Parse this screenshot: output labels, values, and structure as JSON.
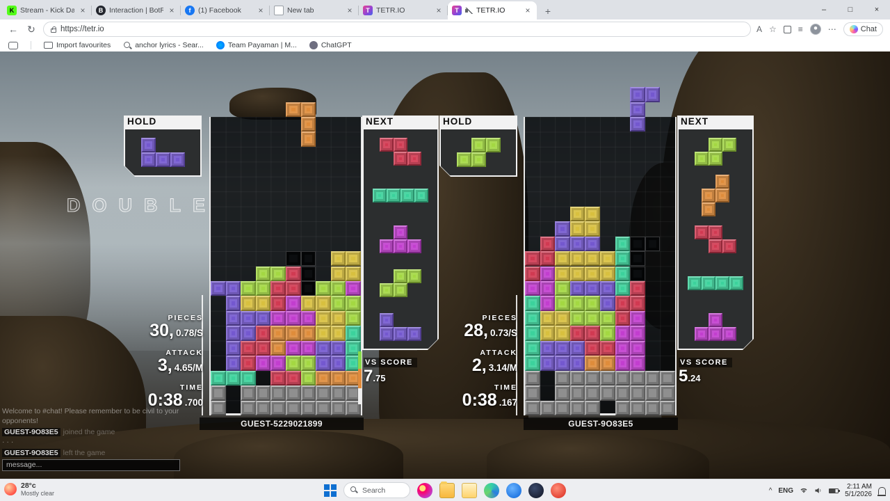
{
  "browser": {
    "icons": {
      "close": "×",
      "new_tab": "+",
      "minimize": "–",
      "maximize": "□",
      "back": "←",
      "refresh": "↻",
      "more": "⋯",
      "star": "☆",
      "favorites_list": "≡",
      "read_aloud": "A",
      "chevron_up": "^"
    },
    "tabs": [
      {
        "title": "Stream - Kick Dashboard",
        "favicon": "kick",
        "glyph": "K"
      },
      {
        "title": "Interaction | BotRix — Cloud Stre...",
        "favicon": "botrix",
        "glyph": "B"
      },
      {
        "title": "(1) Facebook",
        "favicon": "facebook",
        "glyph": "f"
      },
      {
        "title": "New tab",
        "favicon": "newtab",
        "glyph": ""
      },
      {
        "title": "TETR.IO",
        "favicon": "tetrio",
        "glyph": "T"
      },
      {
        "title": "TETR.IO",
        "favicon": "tetrio",
        "glyph": "T",
        "active": true,
        "muted": true
      }
    ],
    "url": "https://tetr.io",
    "chat_button_label": "Chat",
    "bookmarks": [
      {
        "label": "Import favourites",
        "icon": "import"
      },
      {
        "label": "anchor lyrics - Sear...",
        "icon": "search"
      },
      {
        "label": "Team Payaman | M...",
        "icon": "messenger"
      },
      {
        "label": "ChatGPT",
        "icon": "chatgpt"
      }
    ]
  },
  "game": {
    "labels": {
      "hold": "HOLD",
      "next": "NEXT",
      "pieces": "PIECES",
      "attack": "ATTACK",
      "time": "TIME",
      "vs": "VS SCORE"
    },
    "announcement": "DOUBLE",
    "block_colors": {
      "Y": "#d8c03f",
      "O": "#df8c3b",
      "R": "#d13a52",
      "L": "#a3d842",
      "V": "#7458cf",
      "M": "#c23ecf",
      "T": "#3cd29c",
      "G": "#8f8f8f"
    },
    "players": [
      {
        "name": "GUEST-5229021899",
        "stats": {
          "pieces": "30,",
          "pieces_rate": "0.78/S",
          "attack": "3,",
          "attack_rate": "4.65/M",
          "time": "0:38",
          "time_ms": ".700"
        },
        "vs_score_int": "7",
        "vs_score_dec": ".75",
        "hold": {
          "piece": "J",
          "color": "V",
          "cells": [
            [
              0,
              0
            ],
            [
              0,
              1
            ],
            [
              1,
              1
            ],
            [
              2,
              1
            ]
          ]
        },
        "next": [
          {
            "piece": "Z",
            "color": "R",
            "cells": [
              [
                0,
                0
              ],
              [
                1,
                0
              ],
              [
                1,
                1
              ],
              [
                2,
                1
              ]
            ]
          },
          {
            "piece": "I",
            "color": "T",
            "cells": [
              [
                0,
                0
              ],
              [
                1,
                0
              ],
              [
                2,
                0
              ],
              [
                3,
                0
              ]
            ]
          },
          {
            "piece": "T",
            "color": "M",
            "cells": [
              [
                1,
                0
              ],
              [
                0,
                1
              ],
              [
                1,
                1
              ],
              [
                2,
                1
              ]
            ]
          },
          {
            "piece": "S",
            "color": "L",
            "cells": [
              [
                1,
                0
              ],
              [
                2,
                0
              ],
              [
                0,
                1
              ],
              [
                1,
                1
              ]
            ]
          },
          {
            "piece": "J",
            "color": "V",
            "cells": [
              [
                0,
                0
              ],
              [
                0,
                1
              ],
              [
                1,
                1
              ],
              [
                2,
                1
              ]
            ]
          }
        ],
        "falling": {
          "piece": "L",
          "color": "O",
          "cells": [
            [
              5,
              -1
            ],
            [
              6,
              -1
            ],
            [
              6,
              0
            ],
            [
              6,
              1
            ]
          ]
        },
        "board_rows": [
          "..........",
          "..........",
          "..........",
          "..........",
          "..........",
          "..........",
          "..........",
          "..........",
          "..........",
          ".....xx.YY",
          "...LLRx.YY",
          "VVLLRRxLLM",
          ".VYYRMYYLL",
          ".VVVMMMYYL",
          ".VVROOOYYT",
          ".VRROMMVVT",
          ".VRMMLLVVT",
          "TTT.RRLOOO",
          "G.GGGGGGGG",
          "G.GGGGGGGG"
        ],
        "meter_segments": [
          "#86d94b",
          "#e08b3c",
          "#efefef"
        ]
      },
      {
        "name": "GUEST-9O83E5",
        "stats": {
          "pieces": "28,",
          "pieces_rate": "0.73/S",
          "attack": "2,",
          "attack_rate": "3.14/M",
          "time": "0:38",
          "time_ms": ".167"
        },
        "vs_score_int": "5",
        "vs_score_dec": ".24",
        "hold": {
          "piece": "S",
          "color": "L",
          "cells": [
            [
              1,
              0
            ],
            [
              2,
              0
            ],
            [
              0,
              1
            ],
            [
              1,
              1
            ]
          ]
        },
        "next": [
          {
            "piece": "S",
            "color": "L",
            "cells": [
              [
                1,
                0
              ],
              [
                2,
                0
              ],
              [
                0,
                1
              ],
              [
                1,
                1
              ]
            ]
          },
          {
            "piece": "L",
            "color": "O",
            "cells": [
              [
                1,
                0
              ],
              [
                0,
                1
              ],
              [
                1,
                1
              ],
              [
                0,
                2
              ]
            ]
          },
          {
            "piece": "Z",
            "color": "R",
            "cells": [
              [
                0,
                0
              ],
              [
                1,
                0
              ],
              [
                1,
                1
              ],
              [
                2,
                1
              ]
            ]
          },
          {
            "piece": "I",
            "color": "T",
            "cells": [
              [
                0,
                0
              ],
              [
                1,
                0
              ],
              [
                2,
                0
              ],
              [
                3,
                0
              ]
            ]
          },
          {
            "piece": "T",
            "color": "M",
            "cells": [
              [
                1,
                0
              ],
              [
                0,
                1
              ],
              [
                1,
                1
              ],
              [
                2,
                1
              ]
            ]
          }
        ],
        "falling": {
          "piece": "J",
          "color": "V",
          "cells": [
            [
              7,
              -2
            ],
            [
              8,
              -2
            ],
            [
              7,
              -1
            ],
            [
              7,
              0
            ]
          ]
        },
        "board_rows": [
          "..........",
          "..........",
          "..........",
          "..........",
          "..........",
          "..........",
          "...YY.....",
          "..VYY.....",
          ".RVVV.Txx.",
          "RRYYYYTx..",
          "RMYYYYTx..",
          "MMLVVVTR..",
          "TMLLLVRR..",
          "TYYLLLRM..",
          "TYYRRLMM..",
          "TVVVRRMM..",
          "TVVVOOMM..",
          "G.GGGGGGGG",
          "G.GGGGGGGG",
          "GGGGG.GGGG"
        ]
      }
    ]
  },
  "chat": {
    "messages": [
      {
        "kind": "system",
        "text": "Welcome to #chat! Please remember to be civil to your opponents!"
      },
      {
        "kind": "player",
        "name": "GUEST-9O83E5",
        "text": "joined the game"
      },
      {
        "kind": "system",
        "text": "· · ·"
      },
      {
        "kind": "player",
        "name": "GUEST-9O83E5",
        "text": "left the game"
      }
    ],
    "input_placeholder": "message..."
  },
  "taskbar": {
    "weather": {
      "temp": "28°c",
      "condition": "Mostly clear"
    },
    "search_label": "Search",
    "apps": [
      "photos",
      "file-explorer",
      "folder-yellow",
      "edge",
      "messenger",
      "steam",
      "opera"
    ],
    "tray": {
      "language": "ENG",
      "time": "2:11 AM",
      "date": "5/1/2026"
    }
  }
}
